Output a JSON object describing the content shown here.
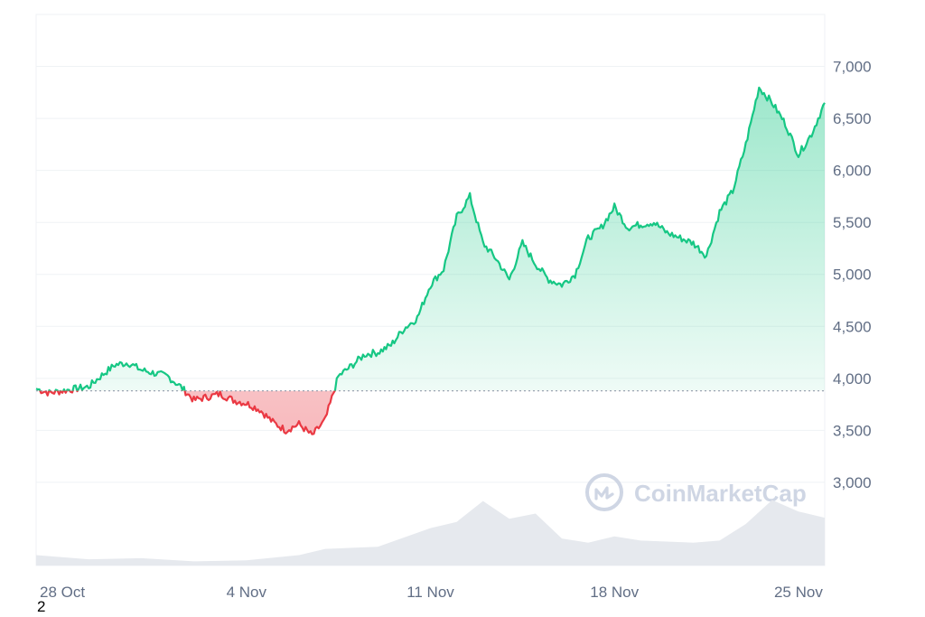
{
  "chart_data": {
    "type": "area",
    "watermark": "CoinMarketCap",
    "baseline": 3880,
    "ylim": [
      2200,
      7500
    ],
    "yticks": [
      "7,000",
      "6,500",
      "6,000",
      "5,500",
      "5,000",
      "4,500",
      "4,000",
      "3,500",
      "3,000"
    ],
    "ytick_values": [
      7000,
      6500,
      6000,
      5500,
      5000,
      4500,
      4000,
      3500,
      3000
    ],
    "xlim": [
      "2024-10-27",
      "2024-11-26"
    ],
    "xticks": [
      "28 Oct",
      "4 Nov",
      "11 Nov",
      "18 Nov",
      "25 Nov"
    ],
    "xtick_dates": [
      "2024-10-28",
      "2024-11-04",
      "2024-11-11",
      "2024-11-18",
      "2024-11-25"
    ],
    "colors": {
      "up": "#16c784",
      "down": "#ea3943",
      "volume": "#e6e9ee",
      "grid": "#eff2f5"
    },
    "series": [
      {
        "type": "line",
        "x": [
          "2024-10-27 00:00",
          "2024-10-27 12:00",
          "2024-10-28 00:00",
          "2024-10-28 12:00",
          "2024-10-29 00:00",
          "2024-10-29 12:00",
          "2024-10-30 00:00",
          "2024-10-30 12:00",
          "2024-10-31 00:00",
          "2024-10-31 12:00",
          "2024-11-01 00:00",
          "2024-11-01 12:00",
          "2024-11-02 00:00",
          "2024-11-02 12:00",
          "2024-11-03 00:00",
          "2024-11-03 12:00",
          "2024-11-04 00:00",
          "2024-11-04 12:00",
          "2024-11-05 00:00",
          "2024-11-05 12:00",
          "2024-11-06 00:00",
          "2024-11-06 12:00",
          "2024-11-07 00:00",
          "2024-11-07 12:00",
          "2024-11-08 00:00",
          "2024-11-08 12:00",
          "2024-11-09 00:00",
          "2024-11-09 12:00",
          "2024-11-10 00:00",
          "2024-11-10 12:00",
          "2024-11-11 00:00",
          "2024-11-11 12:00",
          "2024-11-12 00:00",
          "2024-11-12 12:00",
          "2024-11-13 00:00",
          "2024-11-13 12:00",
          "2024-11-14 00:00",
          "2024-11-14 12:00",
          "2024-11-15 00:00",
          "2024-11-15 12:00",
          "2024-11-16 00:00",
          "2024-11-16 12:00",
          "2024-11-17 00:00",
          "2024-11-17 12:00",
          "2024-11-18 00:00",
          "2024-11-18 12:00",
          "2024-11-19 00:00",
          "2024-11-19 12:00",
          "2024-11-20 00:00",
          "2024-11-20 12:00",
          "2024-11-21 00:00",
          "2024-11-21 12:00",
          "2024-11-22 00:00",
          "2024-11-22 12:00",
          "2024-11-23 00:00",
          "2024-11-23 12:00",
          "2024-11-24 00:00",
          "2024-11-24 12:00",
          "2024-11-25 00:00",
          "2024-11-25 12:00",
          "2024-11-26 00:00"
        ],
        "values": [
          3900,
          3860,
          3880,
          3900,
          3920,
          4030,
          4130,
          4150,
          4080,
          4050,
          4020,
          3920,
          3790,
          3820,
          3850,
          3790,
          3760,
          3700,
          3580,
          3500,
          3560,
          3450,
          3600,
          4020,
          4120,
          4230,
          4250,
          4320,
          4480,
          4580,
          4900,
          5050,
          5550,
          5750,
          5300,
          5150,
          4950,
          5300,
          5100,
          4950,
          4900,
          5000,
          5350,
          5450,
          5650,
          5450,
          5480,
          5500,
          5400,
          5350,
          5300,
          5180,
          5600,
          5800,
          6250,
          6800,
          6650,
          6450,
          6150,
          6350,
          6650
        ]
      },
      {
        "type": "volume",
        "x": [
          "2024-10-27",
          "2024-10-29",
          "2024-10-31",
          "2024-11-02",
          "2024-11-04",
          "2024-11-06",
          "2024-11-07",
          "2024-11-09",
          "2024-11-11",
          "2024-11-12",
          "2024-11-13",
          "2024-11-14",
          "2024-11-15",
          "2024-11-16",
          "2024-11-17",
          "2024-11-18",
          "2024-11-19",
          "2024-11-21",
          "2024-11-22",
          "2024-11-23",
          "2024-11-24",
          "2024-11-25",
          "2024-11-26"
        ],
        "values": [
          2300,
          2260,
          2270,
          2240,
          2250,
          2300,
          2360,
          2380,
          2560,
          2620,
          2820,
          2650,
          2700,
          2460,
          2420,
          2480,
          2440,
          2420,
          2440,
          2600,
          2830,
          2720,
          2660
        ]
      }
    ]
  },
  "footnote": "2"
}
